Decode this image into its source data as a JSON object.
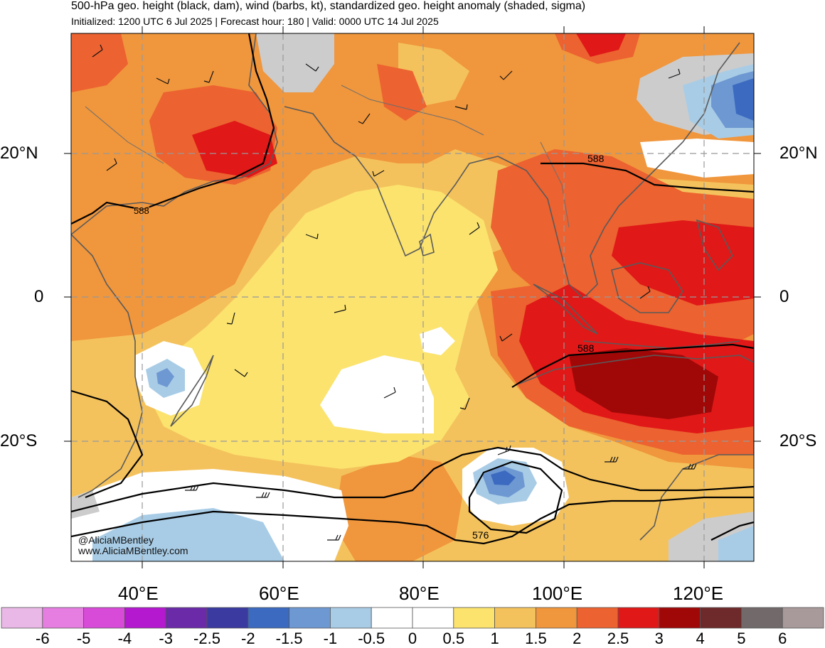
{
  "header": {
    "title": "500-hPa geo. height (black, dam), wind (barbs, kt), standardized geo. height anomaly (shaded, sigma)",
    "subtitle": "Initialized: 1200 UTC 6 Jul 2025 | Forecast hour: 180 | Valid: 0000 UTC 14 Jul 2025"
  },
  "axes": {
    "lat_left": [
      "20°N",
      "0",
      "20°S"
    ],
    "lat_right": [
      "20°N",
      "0",
      "20°S"
    ],
    "lon": [
      "40°E",
      "60°E",
      "80°E",
      "100°E",
      "120°E"
    ]
  },
  "contours": {
    "label_588_a": "588",
    "label_588_b": "588",
    "label_588_c": "588",
    "label_576": "576"
  },
  "credits": {
    "handle": "@AliciaMBentley",
    "site": "www.AliciaMBentley.com"
  },
  "colorbar": {
    "labels": [
      "-6",
      "-5",
      "-4",
      "-3",
      "-2.5",
      "-2",
      "-1.5",
      "-1",
      "-0.5",
      "0",
      "0.5",
      "1",
      "1.5",
      "2",
      "2.5",
      "3",
      "4",
      "5",
      "6"
    ],
    "colors": [
      "#eab8e6",
      "#e57ee0",
      "#d84ad8",
      "#b418cf",
      "#6b2aa8",
      "#3a3aa0",
      "#3c6ac0",
      "#6e98d2",
      "#a8cce6",
      "#ffffff",
      "#ffffff",
      "#fbe36e",
      "#f4c25c",
      "#f0963c",
      "#ec6230",
      "#e01818",
      "#a00808",
      "#6e2a2a",
      "#726a6a",
      "#a89a9a"
    ]
  },
  "palette": {
    "land_outline": "#5a5a5a",
    "grid": "#999999",
    "contour": "#000000"
  }
}
